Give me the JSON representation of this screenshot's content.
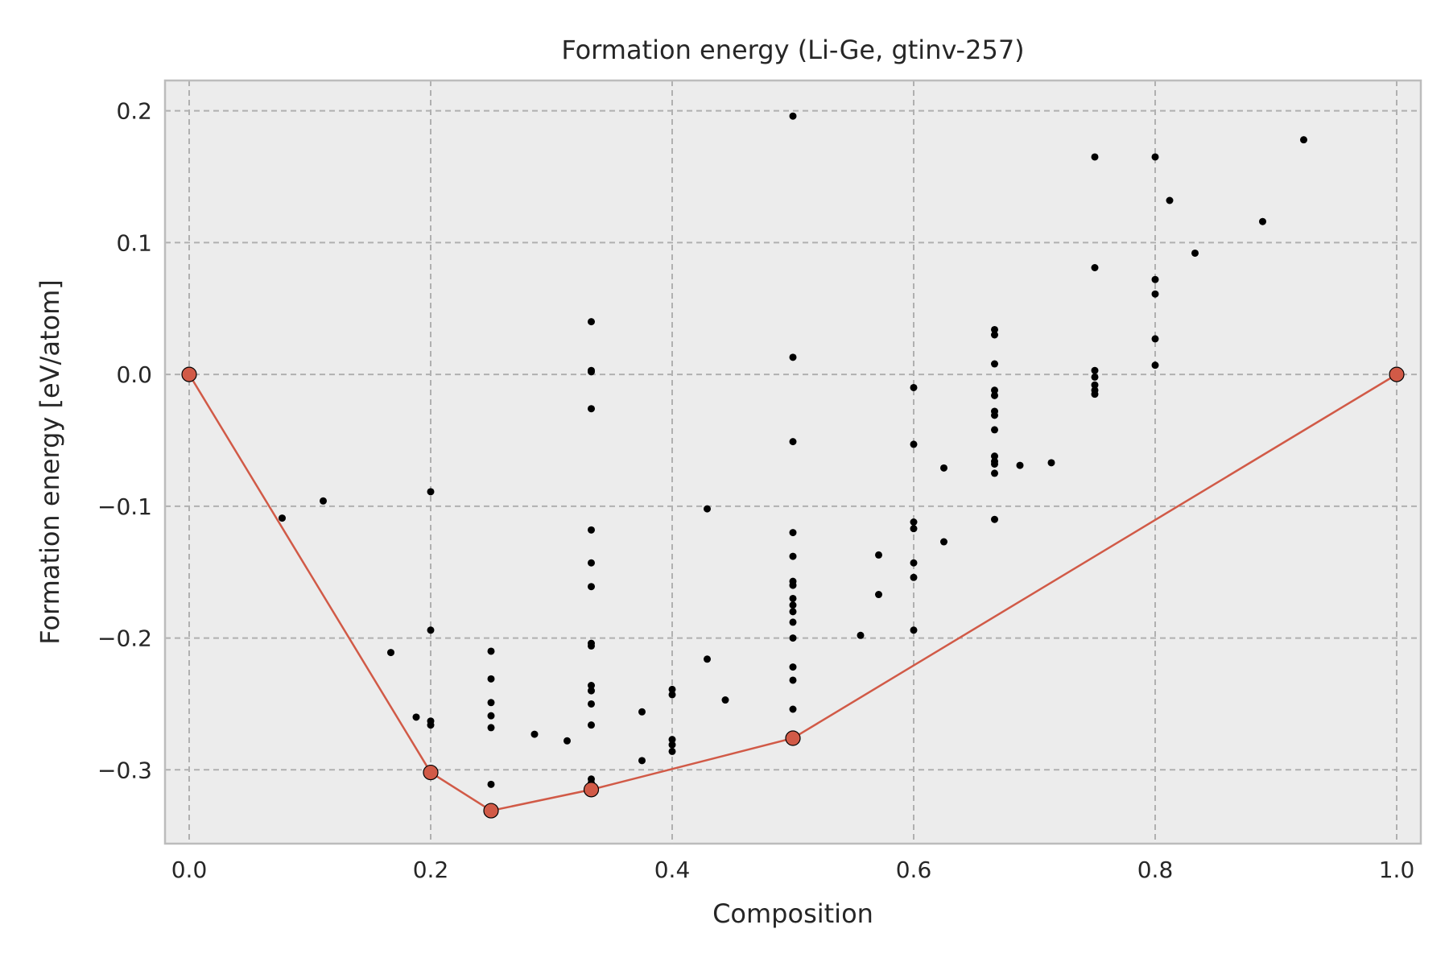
{
  "chart_data": {
    "type": "scatter",
    "title": "Formation energy (Li-Ge, gtinv-257)",
    "xlabel": "Composition",
    "ylabel": "Formation energy [eV/atom]",
    "xlim": [
      -0.02,
      1.02
    ],
    "ylim": [
      -0.356,
      0.223
    ],
    "x_ticks": [
      0.0,
      0.2,
      0.4,
      0.6,
      0.8,
      1.0
    ],
    "x_tick_labels": [
      "0.0",
      "0.2",
      "0.4",
      "0.6",
      "0.8",
      "1.0"
    ],
    "y_ticks": [
      -0.3,
      -0.2,
      -0.1,
      0.0,
      0.1,
      0.2
    ],
    "y_tick_labels": [
      "−0.3",
      "−0.2",
      "−0.1",
      "0.0",
      "0.1",
      "0.2"
    ],
    "grid": true,
    "colors": {
      "background": "#ececec",
      "frame": "#bcbcbc",
      "grid": "#b0b0b0",
      "hull": "#d15a47",
      "points": "#000000"
    },
    "series": [
      {
        "marker": "dot",
        "color": "#000000",
        "points": [
          [
            0.077,
            -0.109
          ],
          [
            0.111,
            -0.096
          ],
          [
            0.167,
            -0.211
          ],
          [
            0.188,
            -0.26
          ],
          [
            0.2,
            -0.089
          ],
          [
            0.2,
            -0.194
          ],
          [
            0.2,
            -0.263
          ],
          [
            0.2,
            -0.266
          ],
          [
            0.25,
            -0.21
          ],
          [
            0.25,
            -0.231
          ],
          [
            0.25,
            -0.249
          ],
          [
            0.25,
            -0.259
          ],
          [
            0.25,
            -0.268
          ],
          [
            0.25,
            -0.311
          ],
          [
            0.286,
            -0.273
          ],
          [
            0.313,
            -0.278
          ],
          [
            0.333,
            0.04
          ],
          [
            0.333,
            0.003
          ],
          [
            0.333,
            0.002
          ],
          [
            0.333,
            -0.026
          ],
          [
            0.333,
            -0.118
          ],
          [
            0.333,
            -0.143
          ],
          [
            0.333,
            -0.161
          ],
          [
            0.333,
            -0.204
          ],
          [
            0.333,
            -0.206
          ],
          [
            0.333,
            -0.236
          ],
          [
            0.333,
            -0.24
          ],
          [
            0.333,
            -0.25
          ],
          [
            0.333,
            -0.266
          ],
          [
            0.333,
            -0.307
          ],
          [
            0.333,
            -0.31
          ],
          [
            0.375,
            -0.256
          ],
          [
            0.375,
            -0.293
          ],
          [
            0.4,
            -0.239
          ],
          [
            0.4,
            -0.243
          ],
          [
            0.4,
            -0.277
          ],
          [
            0.4,
            -0.281
          ],
          [
            0.4,
            -0.286
          ],
          [
            0.429,
            -0.102
          ],
          [
            0.429,
            -0.216
          ],
          [
            0.444,
            -0.247
          ],
          [
            0.5,
            0.196
          ],
          [
            0.5,
            0.013
          ],
          [
            0.5,
            -0.051
          ],
          [
            0.5,
            -0.12
          ],
          [
            0.5,
            -0.138
          ],
          [
            0.5,
            -0.157
          ],
          [
            0.5,
            -0.16
          ],
          [
            0.5,
            -0.17
          ],
          [
            0.5,
            -0.175
          ],
          [
            0.5,
            -0.18
          ],
          [
            0.5,
            -0.188
          ],
          [
            0.5,
            -0.2
          ],
          [
            0.5,
            -0.222
          ],
          [
            0.5,
            -0.232
          ],
          [
            0.5,
            -0.254
          ],
          [
            0.556,
            -0.198
          ],
          [
            0.571,
            -0.137
          ],
          [
            0.571,
            -0.167
          ],
          [
            0.6,
            -0.01
          ],
          [
            0.6,
            -0.053
          ],
          [
            0.6,
            -0.112
          ],
          [
            0.6,
            -0.117
          ],
          [
            0.6,
            -0.143
          ],
          [
            0.6,
            -0.154
          ],
          [
            0.6,
            -0.194
          ],
          [
            0.625,
            -0.071
          ],
          [
            0.625,
            -0.127
          ],
          [
            0.667,
            0.034
          ],
          [
            0.667,
            0.03
          ],
          [
            0.667,
            0.008
          ],
          [
            0.667,
            -0.012
          ],
          [
            0.667,
            -0.016
          ],
          [
            0.667,
            -0.028
          ],
          [
            0.667,
            -0.031
          ],
          [
            0.667,
            -0.042
          ],
          [
            0.667,
            -0.062
          ],
          [
            0.667,
            -0.066
          ],
          [
            0.667,
            -0.068
          ],
          [
            0.667,
            -0.075
          ],
          [
            0.667,
            -0.11
          ],
          [
            0.688,
            -0.069
          ],
          [
            0.714,
            -0.067
          ],
          [
            0.75,
            0.165
          ],
          [
            0.75,
            0.081
          ],
          [
            0.75,
            0.003
          ],
          [
            0.75,
            -0.002
          ],
          [
            0.75,
            -0.008
          ],
          [
            0.75,
            -0.012
          ],
          [
            0.75,
            -0.015
          ],
          [
            0.8,
            0.165
          ],
          [
            0.8,
            0.072
          ],
          [
            0.8,
            0.061
          ],
          [
            0.8,
            0.027
          ],
          [
            0.8,
            0.007
          ],
          [
            0.812,
            0.132
          ],
          [
            0.833,
            0.092
          ],
          [
            0.889,
            0.116
          ],
          [
            0.923,
            0.178
          ]
        ]
      },
      {
        "marker": "hull",
        "color": "#d15a47",
        "points": [
          [
            0.0,
            0.0
          ],
          [
            0.2,
            -0.302
          ],
          [
            0.25,
            -0.331
          ],
          [
            0.333,
            -0.315
          ],
          [
            0.5,
            -0.276
          ],
          [
            1.0,
            0.0
          ]
        ]
      }
    ]
  }
}
